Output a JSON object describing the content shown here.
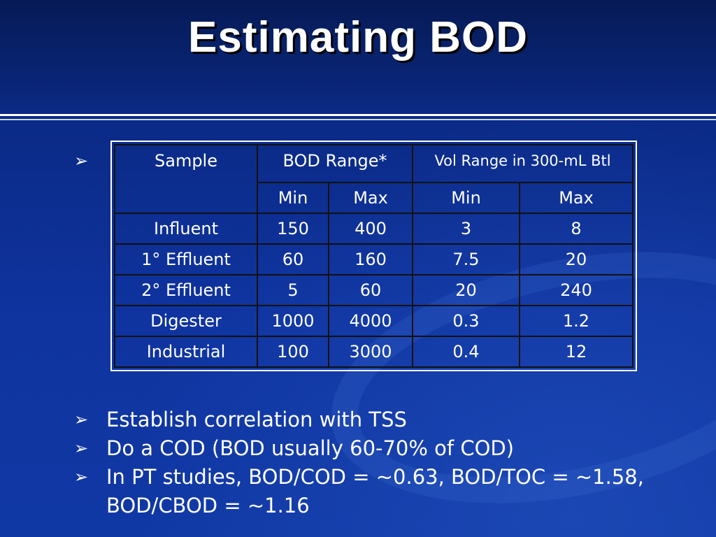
{
  "title": "Estimating BOD",
  "bullet_glyph": "➢",
  "table": {
    "header": {
      "sample": "Sample",
      "bod_range": "BOD Range*",
      "vol_range": "Vol Range in 300-mL Btl",
      "min1": "Min",
      "max1": "Max",
      "min2": "Min",
      "max2": "Max"
    },
    "rows": [
      {
        "sample": "Influent",
        "bod_min": "150",
        "bod_max": "400",
        "vol_min": "3",
        "vol_max": "8"
      },
      {
        "sample": "1° Effluent",
        "bod_min": "60",
        "bod_max": "160",
        "vol_min": "7.5",
        "vol_max": "20"
      },
      {
        "sample": "2° Effluent",
        "bod_min": "5",
        "bod_max": "60",
        "vol_min": "20",
        "vol_max": "240"
      },
      {
        "sample": "Digester",
        "bod_min": "1000",
        "bod_max": "4000",
        "vol_min": "0.3",
        "vol_max": "1.2"
      },
      {
        "sample": "Industrial",
        "bod_min": "100",
        "bod_max": "3000",
        "vol_min": "0.4",
        "vol_max": "12"
      }
    ]
  },
  "bullets": [
    "Establish correlation with TSS",
    "Do a COD (BOD usually 60-70% of COD)",
    "In PT studies, BOD/COD = ~0.63, BOD/TOC  = ~1.58, BOD/CBOD = ~1.16"
  ]
}
